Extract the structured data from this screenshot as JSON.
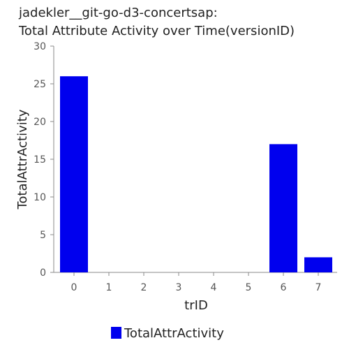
{
  "chart_data": {
    "type": "bar",
    "title_lines": [
      "jadekler__git-go-d3-concertsap:",
      "Total Attribute Activity over Time(versionID)"
    ],
    "xlabel": "trID",
    "ylabel": "TotalAttrActivity",
    "categories": [
      "0",
      "1",
      "2",
      "3",
      "4",
      "5",
      "6",
      "7"
    ],
    "series": [
      {
        "name": "TotalAttrActivity",
        "color": "#0000ee",
        "values": [
          26,
          0,
          0,
          0,
          0,
          0,
          17,
          2
        ]
      }
    ],
    "ylim": [
      0,
      30
    ],
    "yticks": [
      0,
      5,
      10,
      15,
      20,
      25,
      30
    ],
    "grid": false,
    "legend_position": "bottom-center"
  }
}
